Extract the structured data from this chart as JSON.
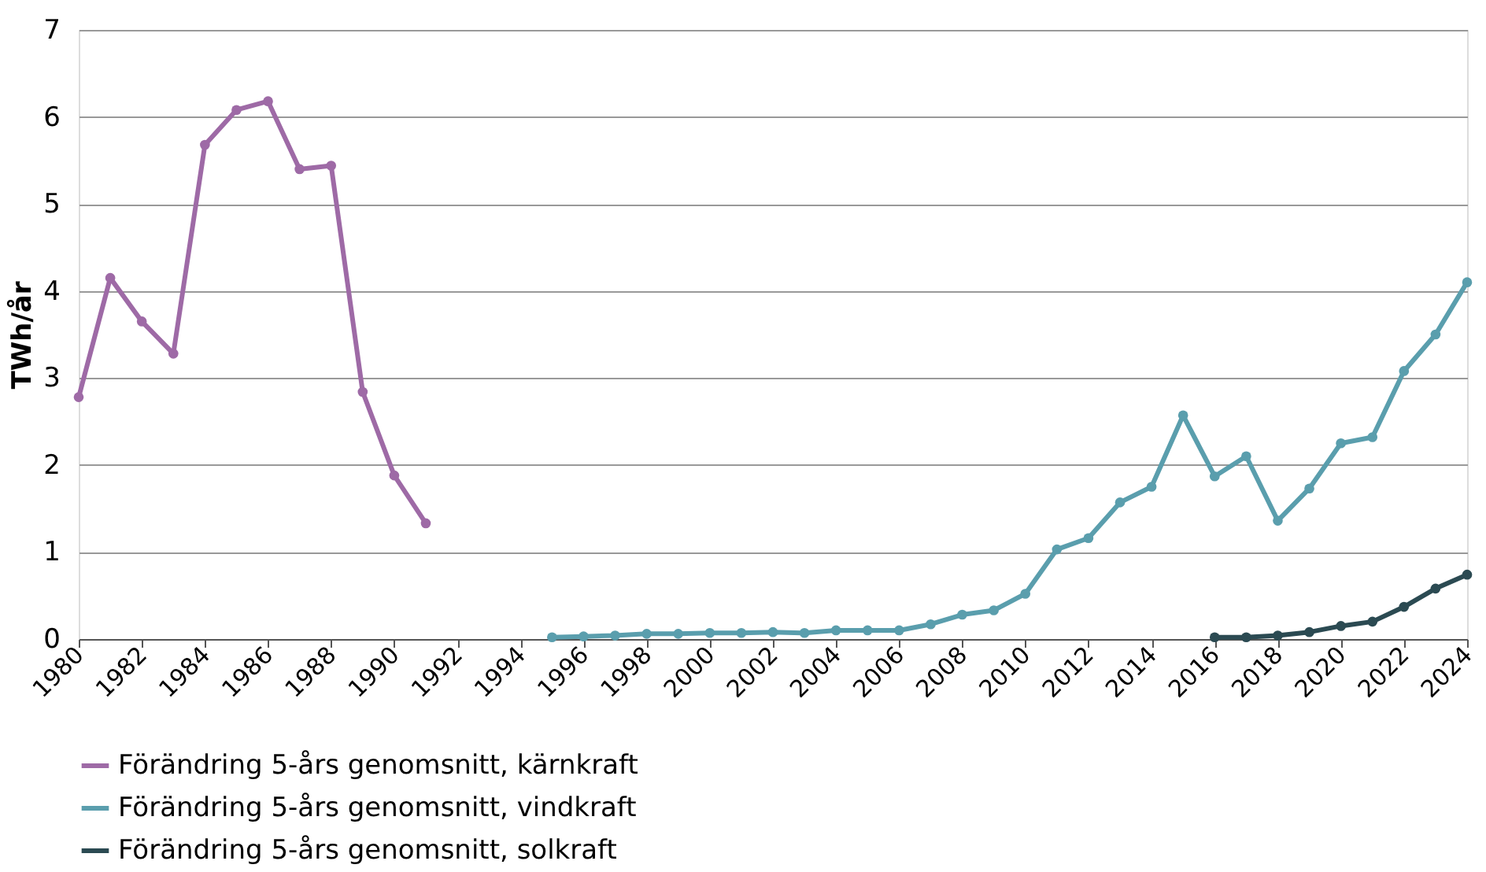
{
  "chart_data": {
    "type": "line",
    "ylabel": "TWh/år",
    "xlim": [
      1980,
      2024
    ],
    "xticks": [
      1980,
      1982,
      1984,
      1986,
      1988,
      1990,
      1992,
      1994,
      1996,
      1998,
      2000,
      2002,
      2004,
      2006,
      2008,
      2010,
      2012,
      2014,
      2016,
      2018,
      2020,
      2022,
      2024
    ],
    "ylim": [
      0,
      7
    ],
    "yticks": [
      0,
      1,
      2,
      3,
      4,
      5,
      6,
      7
    ],
    "grid": "y",
    "legend": "bottom",
    "marker": "circle",
    "line_style": "solid",
    "series": [
      {
        "name": "Förändring 5-års genomsnitt, kärnkraft",
        "color": "#9e6aa6",
        "x": [
          1980,
          1981,
          1982,
          1983,
          1984,
          1985,
          1986,
          1987,
          1988,
          1989,
          1990,
          1991
        ],
        "values": [
          2.78,
          4.15,
          3.65,
          3.28,
          5.68,
          6.08,
          6.18,
          5.4,
          5.44,
          2.84,
          1.88,
          1.33
        ]
      },
      {
        "name": "Förändring 5-års genomsnitt, vindkraft",
        "color": "#5a9ead",
        "x": [
          1995,
          1996,
          1997,
          1998,
          1999,
          2000,
          2001,
          2002,
          2003,
          2004,
          2005,
          2006,
          2007,
          2008,
          2009,
          2010,
          2011,
          2012,
          2013,
          2014,
          2015,
          2016,
          2017,
          2018,
          2019,
          2020,
          2021,
          2022,
          2023,
          2024
        ],
        "values": [
          0.02,
          0.03,
          0.04,
          0.06,
          0.06,
          0.07,
          0.07,
          0.08,
          0.07,
          0.1,
          0.1,
          0.1,
          0.17,
          0.28,
          0.33,
          0.52,
          1.03,
          1.16,
          1.57,
          1.75,
          2.57,
          1.87,
          2.1,
          1.36,
          1.73,
          2.25,
          2.32,
          3.08,
          3.5,
          4.1
        ]
      },
      {
        "name": "Förändring 5-års genomsnitt, solkraft",
        "color": "#2b4a52",
        "x": [
          2016,
          2017,
          2018,
          2019,
          2020,
          2021,
          2022,
          2023,
          2024
        ],
        "values": [
          0.02,
          0.02,
          0.04,
          0.08,
          0.15,
          0.2,
          0.37,
          0.58,
          0.74
        ]
      }
    ]
  }
}
